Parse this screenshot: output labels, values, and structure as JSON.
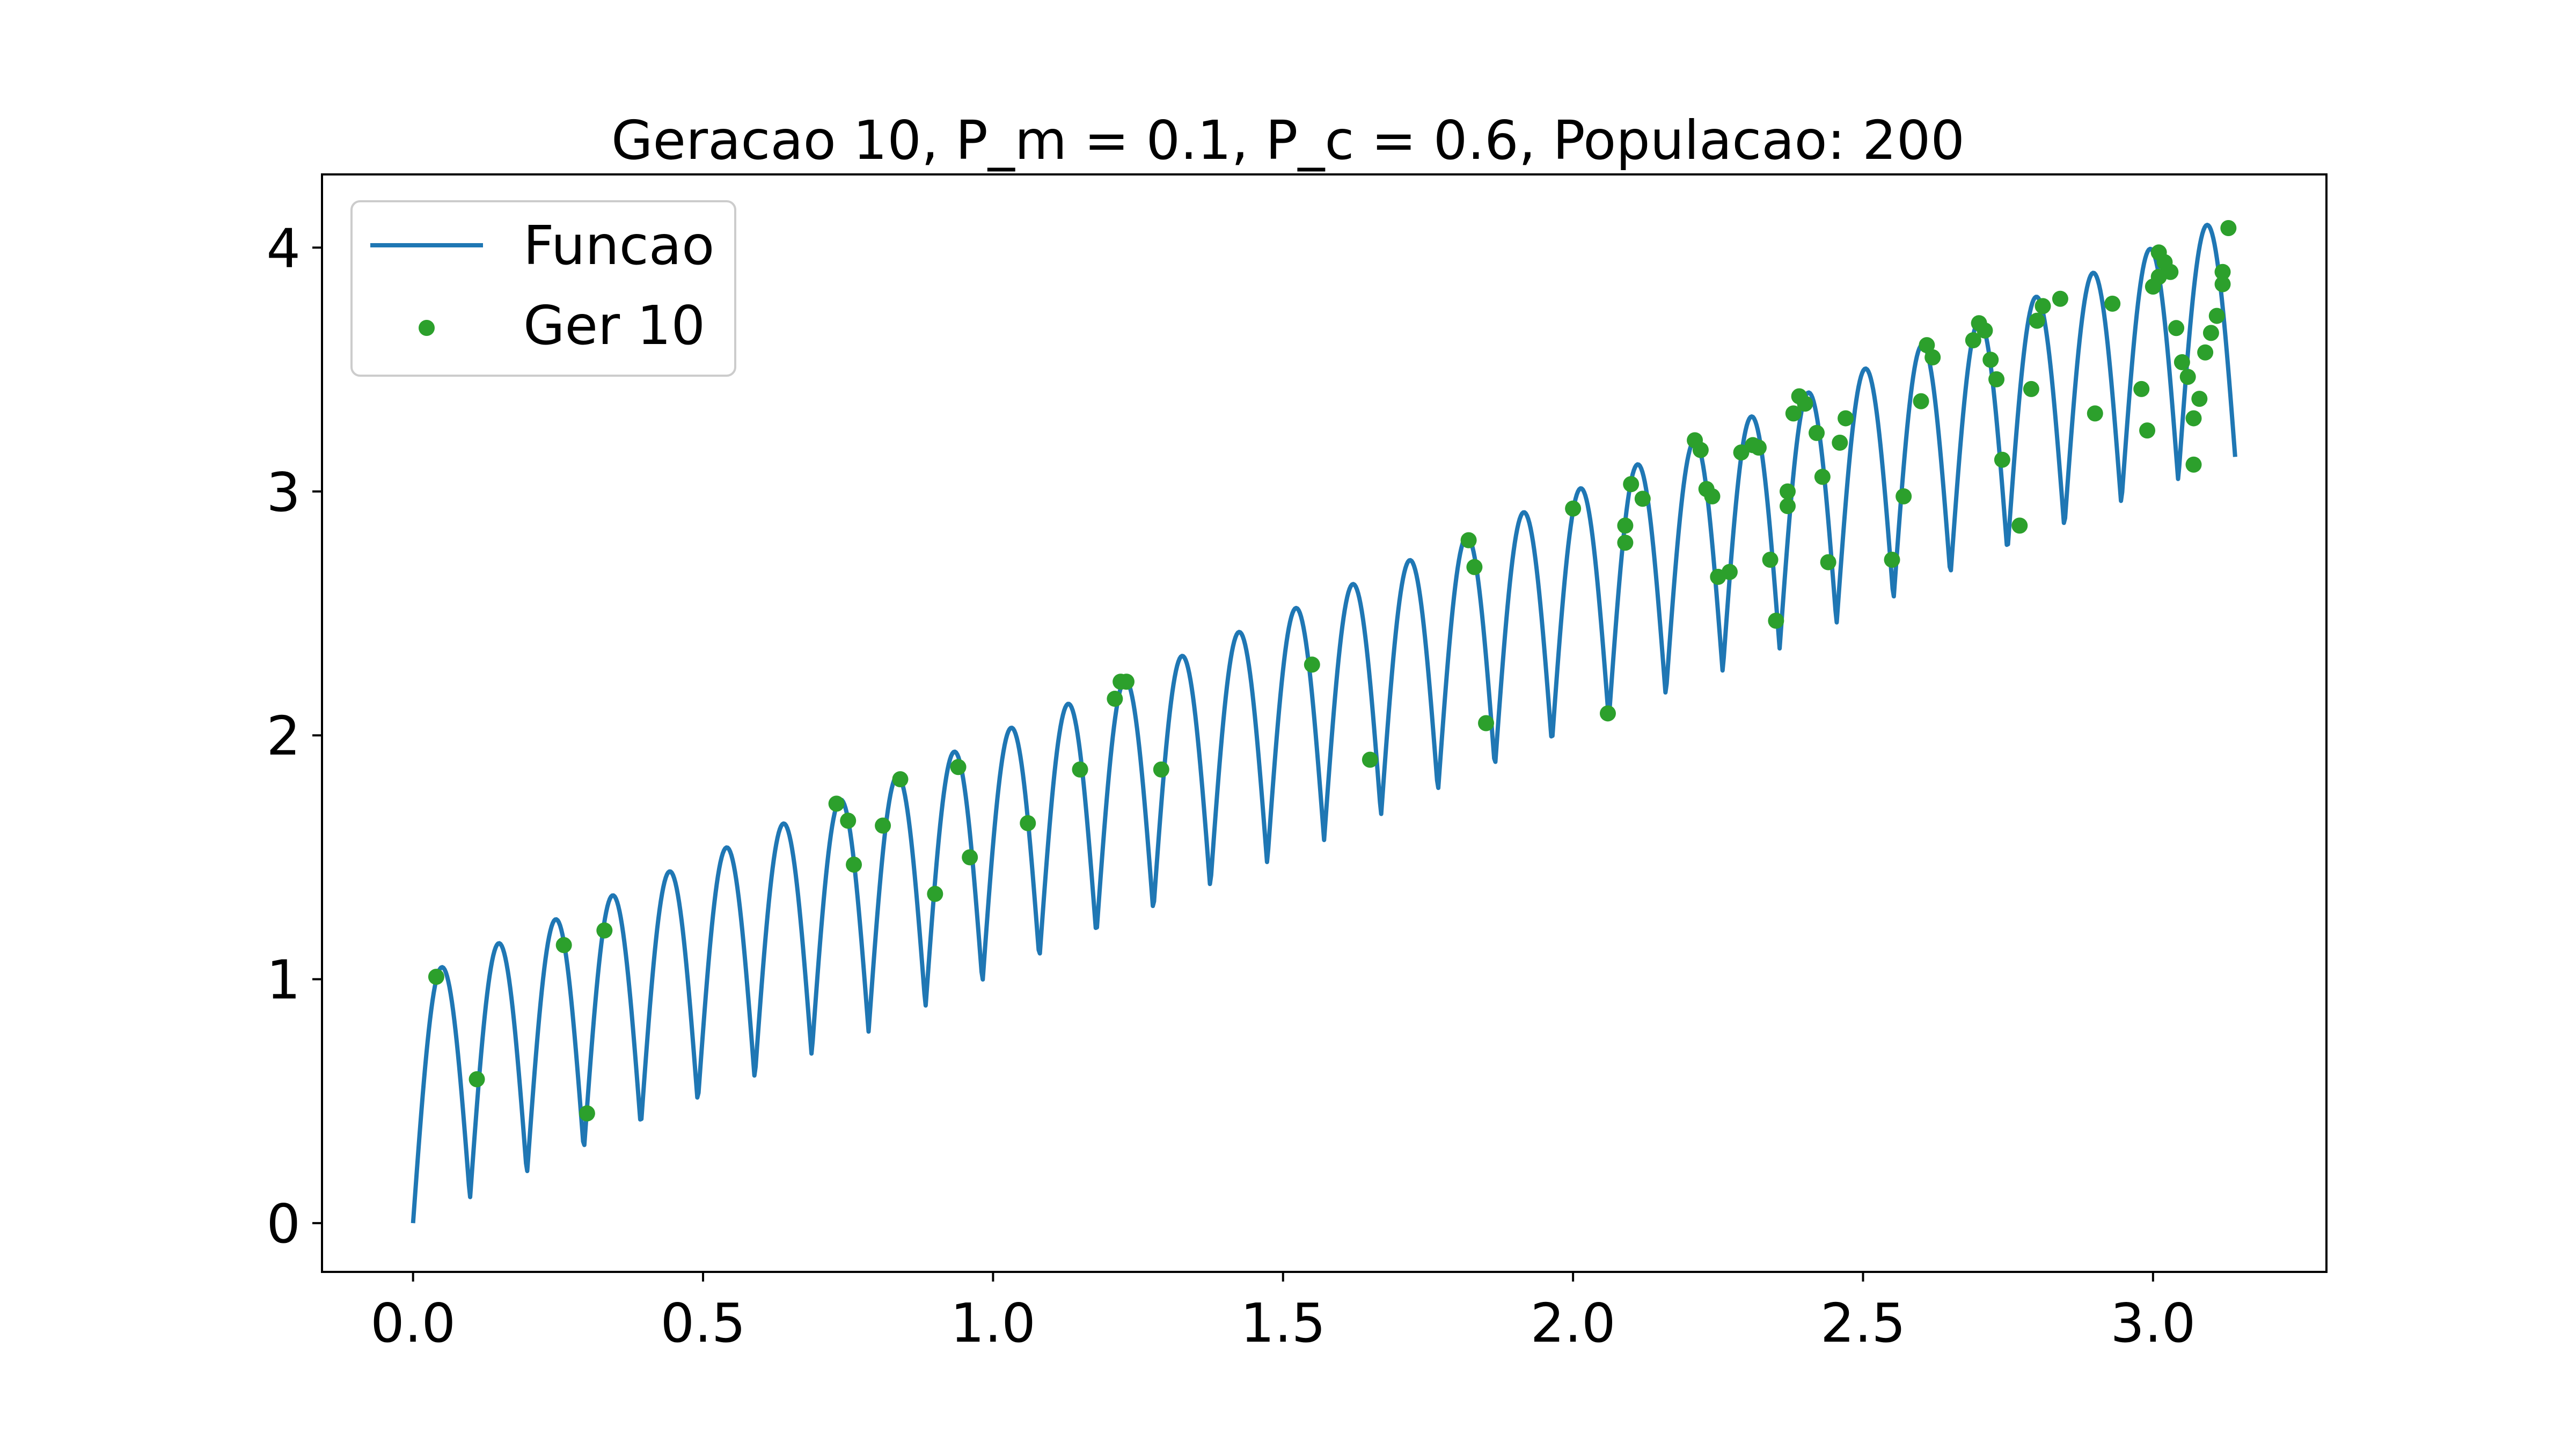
{
  "chart_data": {
    "type": "line+scatter",
    "title": "Geracao 10, P_m = 0.1, P_c = 0.6, Populacao: 200",
    "xlabel": "",
    "ylabel": "",
    "xlim": [
      -0.157,
      3.299
    ],
    "ylim": [
      -0.2,
      4.3
    ],
    "xticks": [
      0.0,
      0.5,
      1.0,
      1.5,
      2.0,
      2.5,
      3.0
    ],
    "xtick_labels": [
      "0.0",
      "0.5",
      "1.0",
      "1.5",
      "2.0",
      "2.5",
      "3.0"
    ],
    "yticks": [
      0,
      1,
      2,
      3,
      4
    ],
    "ytick_labels": [
      "0",
      "1",
      "2",
      "3",
      "4"
    ],
    "grid": false,
    "legend_position": "upper-left",
    "series": [
      {
        "name": "Funcao",
        "kind": "line",
        "color": "#1f77b4",
        "function": "x + |sin(32x)|",
        "x_range": [
          0,
          3.1416
        ],
        "samples": 1500
      },
      {
        "name": "Ger 10",
        "kind": "scatter",
        "color": "#2ca02c",
        "x": [
          0.04,
          0.11,
          0.26,
          0.3,
          0.33,
          0.73,
          0.75,
          0.76,
          0.81,
          0.84,
          0.9,
          0.94,
          0.96,
          1.06,
          1.21,
          1.22,
          1.23,
          1.15,
          1.29,
          1.55,
          1.65,
          1.82,
          1.83,
          1.85,
          2.0,
          2.06,
          2.09,
          2.09,
          2.1,
          2.12,
          2.21,
          2.22,
          2.23,
          2.24,
          2.25,
          2.27,
          2.29,
          2.31,
          2.32,
          2.34,
          2.35,
          2.37,
          2.37,
          2.38,
          2.39,
          2.4,
          2.42,
          2.43,
          2.44,
          2.46,
          2.47,
          2.55,
          2.57,
          2.6,
          2.61,
          2.62,
          2.69,
          2.7,
          2.71,
          2.72,
          2.73,
          2.74,
          2.77,
          2.79,
          2.8,
          2.81,
          2.84,
          2.9,
          2.93,
          2.98,
          2.99,
          3.0,
          3.01,
          3.01,
          3.02,
          3.03,
          3.04,
          3.05,
          3.06,
          3.07,
          3.07,
          3.08,
          3.09,
          3.1,
          3.11,
          3.12,
          3.12,
          3.13
        ],
        "y": [
          1.01,
          0.59,
          1.14,
          0.45,
          1.2,
          1.72,
          1.65,
          1.47,
          1.63,
          1.82,
          1.35,
          1.87,
          1.5,
          1.64,
          2.15,
          2.22,
          2.22,
          1.86,
          1.86,
          2.29,
          1.9,
          2.8,
          2.69,
          2.05,
          2.93,
          2.09,
          2.86,
          2.79,
          3.03,
          2.97,
          3.21,
          3.17,
          3.01,
          2.98,
          2.65,
          2.67,
          3.16,
          3.19,
          3.18,
          2.72,
          2.47,
          3.0,
          2.94,
          3.32,
          3.39,
          3.36,
          3.24,
          3.06,
          2.71,
          3.2,
          3.3,
          2.72,
          2.98,
          3.37,
          3.6,
          3.55,
          3.62,
          3.69,
          3.66,
          3.54,
          3.46,
          3.13,
          2.86,
          3.42,
          3.7,
          3.76,
          3.79,
          3.32,
          3.77,
          3.42,
          3.25,
          3.84,
          3.88,
          3.98,
          3.94,
          3.9,
          3.67,
          3.53,
          3.47,
          3.11,
          3.3,
          3.38,
          3.57,
          3.65,
          3.72,
          3.85,
          3.9,
          4.08
        ]
      }
    ]
  }
}
